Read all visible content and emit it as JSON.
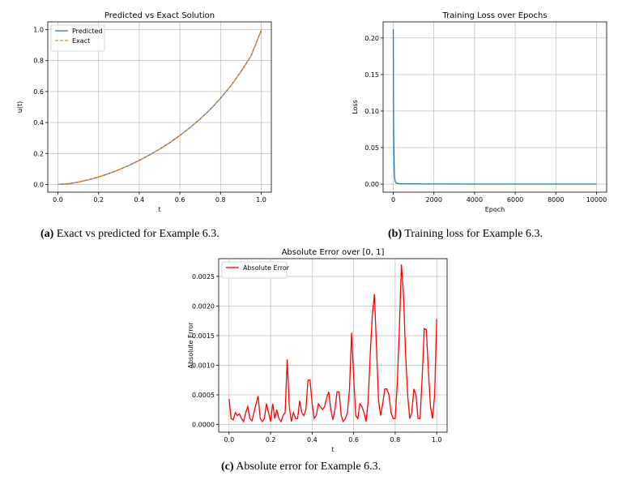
{
  "captions": {
    "a_label": "(a)",
    "a_text": " Exact vs predicted for Example 6.3.",
    "b_label": "(b)",
    "b_text": " Training loss for Example 6.3.",
    "c_label": "(c)",
    "c_text": " Absolute error for Example 6.3."
  },
  "colors": {
    "predicted": "#1f77b4",
    "exact": "#ff7f0e",
    "loss": "#1f77b4",
    "error": "#ff0000"
  },
  "chart_data": [
    {
      "type": "line",
      "title": "Predicted vs Exact Solution",
      "xlabel": "t",
      "ylabel": "u(t)",
      "xlim": [
        -0.05,
        1.05
      ],
      "ylim": [
        -0.05,
        1.05
      ],
      "xticks": [
        "0.0",
        "0.2",
        "0.4",
        "0.6",
        "0.8",
        "1.0"
      ],
      "yticks": [
        "0.0",
        "0.2",
        "0.4",
        "0.6",
        "0.8",
        "1.0"
      ],
      "grid": true,
      "legend": "top-left",
      "x": [
        0.0,
        0.05,
        0.1,
        0.15,
        0.2,
        0.25,
        0.3,
        0.35,
        0.4,
        0.45,
        0.5,
        0.55,
        0.6,
        0.65,
        0.7,
        0.75,
        0.8,
        0.85,
        0.9,
        0.95,
        1.0
      ],
      "series": [
        {
          "name": "Predicted",
          "style": "solid",
          "values": [
            0.0,
            0.004,
            0.015,
            0.03,
            0.048,
            0.07,
            0.095,
            0.123,
            0.155,
            0.19,
            0.228,
            0.27,
            0.316,
            0.367,
            0.423,
            0.485,
            0.556,
            0.636,
            0.728,
            0.83,
            0.995
          ]
        },
        {
          "name": "Exact",
          "style": "dashed",
          "values": [
            0.0,
            0.004,
            0.015,
            0.03,
            0.048,
            0.07,
            0.095,
            0.123,
            0.155,
            0.19,
            0.228,
            0.27,
            0.316,
            0.367,
            0.423,
            0.485,
            0.556,
            0.636,
            0.728,
            0.83,
            0.995
          ]
        }
      ]
    },
    {
      "type": "line",
      "title": "Training Loss over Epochs",
      "xlabel": "Epoch",
      "ylabel": "Loss",
      "xlim": [
        -500,
        10500
      ],
      "ylim": [
        -0.011,
        0.222
      ],
      "xticks": [
        "0",
        "2000",
        "4000",
        "6000",
        "8000",
        "10000"
      ],
      "yticks": [
        "0.00",
        "0.05",
        "0.10",
        "0.15",
        "0.20"
      ],
      "grid": true,
      "x": [
        0,
        10,
        20,
        40,
        60,
        80,
        100,
        150,
        200,
        300,
        500,
        1000,
        2000,
        4000,
        6000,
        8000,
        10000
      ],
      "series": [
        {
          "name": "",
          "values": [
            0.212,
            0.12,
            0.07,
            0.03,
            0.012,
            0.006,
            0.003,
            0.0015,
            0.001,
            0.0006,
            0.0004,
            0.0003,
            0.0002,
            0.0001,
            0.0001,
            0.0001,
            0.0001
          ]
        }
      ]
    },
    {
      "type": "line",
      "title": "Absolute Error over [0, 1]",
      "xlabel": "t",
      "ylabel": "Absolute Error",
      "xlim": [
        -0.05,
        1.05
      ],
      "ylim": [
        -0.00013,
        0.0028
      ],
      "xticks": [
        "0.0",
        "0.2",
        "0.4",
        "0.6",
        "0.8",
        "1.0"
      ],
      "yticks": [
        "0.0000",
        "0.0005",
        "0.0010",
        "0.0015",
        "0.0020",
        "0.0025"
      ],
      "grid": true,
      "legend": "top-left",
      "x": [
        0.0,
        0.01,
        0.02,
        0.03,
        0.04,
        0.05,
        0.06,
        0.07,
        0.08,
        0.09,
        0.1,
        0.11,
        0.12,
        0.13,
        0.14,
        0.15,
        0.16,
        0.17,
        0.18,
        0.19,
        0.2,
        0.21,
        0.22,
        0.23,
        0.24,
        0.25,
        0.26,
        0.27,
        0.28,
        0.29,
        0.3,
        0.31,
        0.32,
        0.33,
        0.34,
        0.35,
        0.36,
        0.37,
        0.38,
        0.39,
        0.4,
        0.41,
        0.42,
        0.43,
        0.44,
        0.45,
        0.46,
        0.47,
        0.48,
        0.49,
        0.5,
        0.51,
        0.52,
        0.53,
        0.54,
        0.55,
        0.56,
        0.57,
        0.58,
        0.59,
        0.6,
        0.61,
        0.62,
        0.63,
        0.64,
        0.65,
        0.66,
        0.67,
        0.68,
        0.69,
        0.7,
        0.71,
        0.72,
        0.73,
        0.74,
        0.75,
        0.76,
        0.77,
        0.78,
        0.79,
        0.8,
        0.81,
        0.82,
        0.83,
        0.84,
        0.85,
        0.86,
        0.87,
        0.88,
        0.89,
        0.9,
        0.91,
        0.92,
        0.93,
        0.94,
        0.95,
        0.96,
        0.97,
        0.98,
        0.99,
        1.0
      ],
      "series": [
        {
          "name": "Absolute Error",
          "values": [
            0.00043,
            0.0001,
            8e-05,
            0.0002,
            0.00015,
            0.00018,
            0.0001,
            5e-05,
            0.0002,
            0.0003,
            0.0001,
            6e-05,
            0.0002,
            0.00035,
            0.00048,
            0.0001,
            5e-05,
            0.0001,
            0.00035,
            0.0002,
            5e-05,
            0.00035,
            0.0001,
            0.00025,
            0.0001,
            5e-05,
            0.00015,
            0.0002,
            0.0011,
            0.0003,
            5e-05,
            0.0002,
            0.0001,
            0.0001,
            0.0004,
            0.0002,
            0.00015,
            0.00025,
            0.00075,
            0.00075,
            0.00035,
            0.0001,
            0.00015,
            0.00035,
            0.0003,
            0.00025,
            0.0003,
            0.00045,
            0.00055,
            0.00025,
            8e-05,
            0.00025,
            0.00055,
            0.00055,
            0.00015,
            5e-05,
            0.0001,
            0.0002,
            0.0006,
            0.00155,
            0.0008,
            0.00015,
            0.0001,
            0.00035,
            0.0003,
            0.0002,
            5e-05,
            0.0004,
            0.0012,
            0.00185,
            0.0022,
            0.0013,
            0.0004,
            0.00015,
            0.00035,
            0.0006,
            0.0006,
            0.0005,
            0.0002,
            0.0001,
            0.0001,
            0.0007,
            0.0016,
            0.0027,
            0.0022,
            0.0012,
            0.0005,
            0.0001,
            0.0002,
            0.0006,
            0.0005,
            0.0001,
            0.0001,
            0.0008,
            0.00162,
            0.0016,
            0.0009,
            0.0003,
            0.0001,
            0.0005,
            0.00178
          ]
        }
      ]
    }
  ]
}
